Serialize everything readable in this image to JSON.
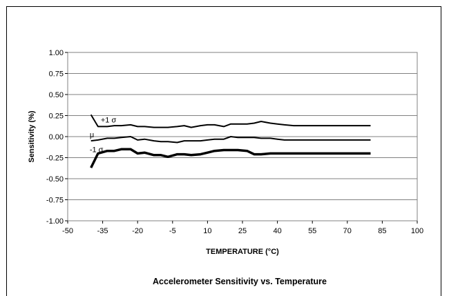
{
  "chart_data": {
    "type": "line",
    "title": "Accelerometer Sensitivity vs. Temperature",
    "xlabel": "TEMPERATURE (°C)",
    "ylabel": "Sensitivity (%)",
    "xlim": [
      -50,
      100
    ],
    "ylim": [
      -1.0,
      1.0
    ],
    "xticks": [
      "-50",
      "-35",
      "-20",
      "-5",
      "10",
      "25",
      "40",
      "55",
      "70",
      "85",
      "100"
    ],
    "yticks": [
      "1.00",
      "0.75",
      "0.50",
      "0.25",
      "0.00",
      "-0.25",
      "-0.50",
      "-0.75",
      "-1.00"
    ],
    "grid": "horizontal",
    "x": [
      -40,
      -37,
      -33,
      -30,
      -27,
      -23,
      -20,
      -17,
      -13,
      -10,
      -7,
      -3,
      0,
      3,
      7,
      10,
      13,
      17,
      20,
      23,
      27,
      30,
      33,
      37,
      40,
      43,
      47,
      50,
      53,
      57,
      60,
      63,
      67,
      70,
      73,
      77,
      80
    ],
    "series": [
      {
        "name": "+1 σ",
        "stroke": "#000000",
        "width": 2,
        "values": [
          0.26,
          0.12,
          0.12,
          0.13,
          0.13,
          0.14,
          0.12,
          0.12,
          0.11,
          0.11,
          0.11,
          0.12,
          0.13,
          0.11,
          0.13,
          0.14,
          0.14,
          0.12,
          0.15,
          0.15,
          0.15,
          0.16,
          0.18,
          0.16,
          0.15,
          0.14,
          0.13,
          0.13,
          0.13,
          0.13,
          0.13,
          0.13,
          0.13,
          0.13,
          0.13,
          0.13,
          0.13
        ]
      },
      {
        "name": "μ",
        "stroke": "#000000",
        "width": 2,
        "values": [
          -0.05,
          -0.04,
          -0.02,
          -0.02,
          -0.01,
          0.0,
          -0.04,
          -0.03,
          -0.05,
          -0.06,
          -0.06,
          -0.07,
          -0.05,
          -0.05,
          -0.05,
          -0.04,
          -0.03,
          -0.03,
          0.0,
          -0.01,
          -0.01,
          -0.01,
          -0.02,
          -0.02,
          -0.03,
          -0.04,
          -0.04,
          -0.04,
          -0.04,
          -0.04,
          -0.04,
          -0.04,
          -0.04,
          -0.04,
          -0.04,
          -0.04,
          -0.04
        ]
      },
      {
        "name": "-1 σ",
        "stroke": "#000000",
        "width": 3.5,
        "values": [
          -0.37,
          -0.2,
          -0.17,
          -0.17,
          -0.15,
          -0.15,
          -0.2,
          -0.19,
          -0.22,
          -0.22,
          -0.24,
          -0.21,
          -0.21,
          -0.22,
          -0.21,
          -0.19,
          -0.17,
          -0.16,
          -0.16,
          -0.16,
          -0.17,
          -0.21,
          -0.21,
          -0.2,
          -0.2,
          -0.2,
          -0.2,
          -0.2,
          -0.2,
          -0.2,
          -0.2,
          -0.2,
          -0.2,
          -0.2,
          -0.2,
          -0.2,
          -0.2
        ]
      }
    ]
  }
}
